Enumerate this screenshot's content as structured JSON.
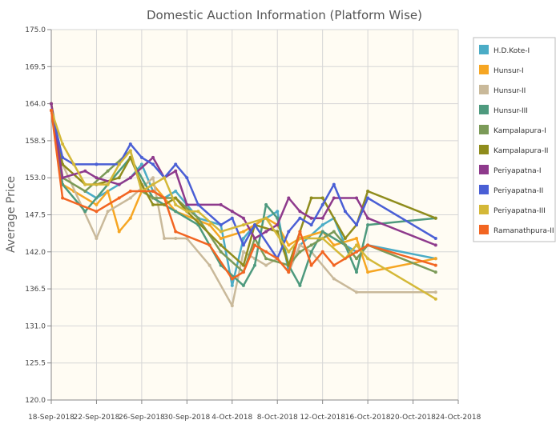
{
  "chart_data": {
    "type": "line",
    "title": "Domestic Auction Information (Platform Wise)",
    "xlabel": "",
    "ylabel": "Average Price",
    "ylim": [
      120.0,
      175.0
    ],
    "yticks": [
      "120.0",
      "125.5",
      "131.0",
      "136.5",
      "142.0",
      "147.5",
      "153.0",
      "158.5",
      "164.0",
      "169.5",
      "175.0"
    ],
    "xticks": [
      {
        "date": "2018-09-18",
        "label": "18-Sep-2018"
      },
      {
        "date": "2018-09-22",
        "label": "22-Sep-2018"
      },
      {
        "date": "2018-09-26",
        "label": "26-Sep-2018"
      },
      {
        "date": "2018-09-30",
        "label": "30-Sep-2018"
      },
      {
        "date": "2018-10-04",
        "label": "4-Oct-2018"
      },
      {
        "date": "2018-10-08",
        "label": "8-Oct-2018"
      },
      {
        "date": "2018-10-12",
        "label": "12-Oct-2018"
      },
      {
        "date": "2018-10-16",
        "label": "16-Oct-2018"
      },
      {
        "date": "2018-10-20",
        "label": "20-Oct-2018"
      },
      {
        "date": "2018-10-24",
        "label": "24-Oct-2018"
      }
    ],
    "xlim": [
      "2018-09-18",
      "2018-10-24"
    ],
    "grid": true,
    "legend_position": "right",
    "background": "#fffcf3",
    "series": [
      {
        "name": "H.D.Kote-I",
        "color": "#4bacc6",
        "points": [
          [
            "2018-09-21",
            151
          ],
          [
            "2018-09-22",
            150
          ],
          [
            "2018-09-24",
            152
          ],
          [
            "2018-09-25",
            153
          ],
          [
            "2018-09-26",
            155
          ],
          [
            "2018-09-27",
            151
          ],
          [
            "2018-09-28",
            150
          ],
          [
            "2018-09-29",
            151
          ],
          [
            "2018-09-30",
            149
          ],
          [
            "2018-10-01",
            147
          ],
          [
            "2018-10-03",
            146
          ],
          [
            "2018-10-04",
            137
          ],
          [
            "2018-10-05",
            144
          ],
          [
            "2018-10-06",
            146
          ],
          [
            "2018-10-08",
            148
          ],
          [
            "2018-10-09",
            139
          ],
          [
            "2018-10-10",
            143
          ],
          [
            "2018-10-12",
            146
          ],
          [
            "2018-10-13",
            147
          ],
          [
            "2018-10-14",
            143
          ],
          [
            "2018-10-15",
            142
          ],
          [
            "2018-10-16",
            143
          ],
          [
            "2018-10-22",
            141
          ]
        ]
      },
      {
        "name": "Hunsur-I",
        "color": "#f6a623",
        "points": [
          [
            "2018-09-18",
            163
          ],
          [
            "2018-09-19",
            152
          ],
          [
            "2018-09-20",
            151
          ],
          [
            "2018-09-22",
            149
          ],
          [
            "2018-09-23",
            151
          ],
          [
            "2018-09-24",
            145
          ],
          [
            "2018-09-25",
            147
          ],
          [
            "2018-09-26",
            151
          ],
          [
            "2018-09-27",
            152
          ],
          [
            "2018-09-28",
            150
          ],
          [
            "2018-09-29",
            148
          ],
          [
            "2018-10-02",
            146
          ],
          [
            "2018-10-03",
            144
          ],
          [
            "2018-10-05",
            145
          ],
          [
            "2018-10-07",
            147
          ],
          [
            "2018-10-08",
            146
          ],
          [
            "2018-10-09",
            143
          ],
          [
            "2018-10-10",
            144
          ],
          [
            "2018-10-12",
            145
          ],
          [
            "2018-10-13",
            143
          ],
          [
            "2018-10-15",
            144
          ],
          [
            "2018-10-16",
            139
          ],
          [
            "2018-10-22",
            141
          ]
        ]
      },
      {
        "name": "Hunsur-II",
        "color": "#c9b99a",
        "points": [
          [
            "2018-09-18",
            163
          ],
          [
            "2018-09-19",
            155
          ],
          [
            "2018-09-22",
            144
          ],
          [
            "2018-09-23",
            148
          ],
          [
            "2018-09-25",
            150
          ],
          [
            "2018-09-27",
            153
          ],
          [
            "2018-09-28",
            144
          ],
          [
            "2018-09-29",
            144
          ],
          [
            "2018-09-30",
            144
          ],
          [
            "2018-10-02",
            140
          ],
          [
            "2018-10-04",
            134
          ],
          [
            "2018-10-05",
            142
          ],
          [
            "2018-10-06",
            141
          ],
          [
            "2018-10-07",
            140
          ],
          [
            "2018-10-08",
            141
          ],
          [
            "2018-10-09",
            139
          ],
          [
            "2018-10-10",
            143
          ],
          [
            "2018-10-11",
            142
          ],
          [
            "2018-10-13",
            138
          ],
          [
            "2018-10-15",
            136
          ],
          [
            "2018-10-22",
            136
          ]
        ]
      },
      {
        "name": "Hunsur-III",
        "color": "#4e9a7e",
        "points": [
          [
            "2018-09-18",
            163
          ],
          [
            "2018-09-19",
            152
          ],
          [
            "2018-09-21",
            148
          ],
          [
            "2018-09-23",
            152
          ],
          [
            "2018-09-25",
            156
          ],
          [
            "2018-09-27",
            150
          ],
          [
            "2018-09-29",
            148
          ],
          [
            "2018-10-01",
            146
          ],
          [
            "2018-10-03",
            140
          ],
          [
            "2018-10-05",
            137
          ],
          [
            "2018-10-06",
            140
          ],
          [
            "2018-10-07",
            149
          ],
          [
            "2018-10-08",
            147
          ],
          [
            "2018-10-09",
            140
          ],
          [
            "2018-10-10",
            137
          ],
          [
            "2018-10-11",
            142
          ],
          [
            "2018-10-12",
            145
          ],
          [
            "2018-10-14",
            143
          ],
          [
            "2018-10-15",
            139
          ],
          [
            "2018-10-16",
            146
          ],
          [
            "2018-10-22",
            147
          ]
        ]
      },
      {
        "name": "Kampalapura-I",
        "color": "#7b9a58",
        "points": [
          [
            "2018-09-18",
            164
          ],
          [
            "2018-09-19",
            153
          ],
          [
            "2018-09-21",
            151
          ],
          [
            "2018-09-23",
            154
          ],
          [
            "2018-09-25",
            157
          ],
          [
            "2018-09-26",
            151
          ],
          [
            "2018-09-27",
            150
          ],
          [
            "2018-09-29",
            150
          ],
          [
            "2018-10-01",
            147
          ],
          [
            "2018-10-03",
            142
          ],
          [
            "2018-10-05",
            139
          ],
          [
            "2018-10-06",
            144
          ],
          [
            "2018-10-07",
            141
          ],
          [
            "2018-10-09",
            140
          ],
          [
            "2018-10-10",
            142
          ],
          [
            "2018-10-11",
            143
          ],
          [
            "2018-10-13",
            145
          ],
          [
            "2018-10-15",
            141
          ],
          [
            "2018-10-16",
            143
          ],
          [
            "2018-10-22",
            139
          ]
        ]
      },
      {
        "name": "Kampalapura-II",
        "color": "#8f8c1c",
        "points": [
          [
            "2018-09-18",
            164
          ],
          [
            "2018-09-19",
            155
          ],
          [
            "2018-09-21",
            152
          ],
          [
            "2018-09-22",
            152
          ],
          [
            "2018-09-24",
            153
          ],
          [
            "2018-09-25",
            156
          ],
          [
            "2018-09-26",
            152
          ],
          [
            "2018-09-27",
            149
          ],
          [
            "2018-09-28",
            149
          ],
          [
            "2018-09-29",
            150
          ],
          [
            "2018-09-30",
            148
          ],
          [
            "2018-10-03",
            143
          ],
          [
            "2018-10-05",
            140
          ],
          [
            "2018-10-06",
            146
          ],
          [
            "2018-10-08",
            145
          ],
          [
            "2018-10-09",
            140
          ],
          [
            "2018-10-10",
            145
          ],
          [
            "2018-10-11",
            150
          ],
          [
            "2018-10-12",
            150
          ],
          [
            "2018-10-14",
            144
          ],
          [
            "2018-10-15",
            146
          ],
          [
            "2018-10-16",
            151
          ],
          [
            "2018-10-22",
            147
          ]
        ]
      },
      {
        "name": "Periyapatna-I",
        "color": "#8e3a8c",
        "points": [
          [
            "2018-09-18",
            164
          ],
          [
            "2018-09-19",
            153
          ],
          [
            "2018-09-21",
            154
          ],
          [
            "2018-09-22",
            153
          ],
          [
            "2018-09-24",
            152
          ],
          [
            "2018-09-25",
            153
          ],
          [
            "2018-09-27",
            156
          ],
          [
            "2018-09-28",
            153
          ],
          [
            "2018-09-29",
            154
          ],
          [
            "2018-09-30",
            149
          ],
          [
            "2018-10-03",
            149
          ],
          [
            "2018-10-04",
            148
          ],
          [
            "2018-10-05",
            147
          ],
          [
            "2018-10-06",
            144
          ],
          [
            "2018-10-07",
            145
          ],
          [
            "2018-10-08",
            146
          ],
          [
            "2018-10-09",
            150
          ],
          [
            "2018-10-10",
            148
          ],
          [
            "2018-10-11",
            147
          ],
          [
            "2018-10-12",
            147
          ],
          [
            "2018-10-13",
            150
          ],
          [
            "2018-10-15",
            150
          ],
          [
            "2018-10-16",
            147
          ],
          [
            "2018-10-22",
            143
          ]
        ]
      },
      {
        "name": "Periyapatna-II",
        "color": "#4a5fd5",
        "points": [
          [
            "2018-09-18",
            163
          ],
          [
            "2018-09-19",
            156
          ],
          [
            "2018-09-20",
            155
          ],
          [
            "2018-09-22",
            155
          ],
          [
            "2018-09-24",
            155
          ],
          [
            "2018-09-25",
            158
          ],
          [
            "2018-09-26",
            156
          ],
          [
            "2018-09-27",
            155
          ],
          [
            "2018-09-28",
            153
          ],
          [
            "2018-09-29",
            155
          ],
          [
            "2018-09-30",
            153
          ],
          [
            "2018-10-01",
            149
          ],
          [
            "2018-10-03",
            146
          ],
          [
            "2018-10-04",
            147
          ],
          [
            "2018-10-05",
            143
          ],
          [
            "2018-10-06",
            146
          ],
          [
            "2018-10-08",
            141
          ],
          [
            "2018-10-09",
            145
          ],
          [
            "2018-10-10",
            147
          ],
          [
            "2018-10-11",
            146
          ],
          [
            "2018-10-12",
            149
          ],
          [
            "2018-10-13",
            152
          ],
          [
            "2018-10-14",
            148
          ],
          [
            "2018-10-15",
            146
          ],
          [
            "2018-10-16",
            150
          ],
          [
            "2018-10-22",
            144
          ]
        ]
      },
      {
        "name": "Periyapatna-III",
        "color": "#d4b838",
        "points": [
          [
            "2018-09-18",
            163
          ],
          [
            "2018-09-19",
            158
          ],
          [
            "2018-09-20",
            155
          ],
          [
            "2018-09-21",
            152
          ],
          [
            "2018-09-23",
            152
          ],
          [
            "2018-09-24",
            155
          ],
          [
            "2018-09-25",
            157
          ],
          [
            "2018-09-26",
            151
          ],
          [
            "2018-09-27",
            152
          ],
          [
            "2018-09-28",
            153
          ],
          [
            "2018-09-29",
            149
          ],
          [
            "2018-09-30",
            148
          ],
          [
            "2018-10-01",
            148
          ],
          [
            "2018-10-03",
            145
          ],
          [
            "2018-10-05",
            146
          ],
          [
            "2018-10-07",
            147
          ],
          [
            "2018-10-09",
            142
          ],
          [
            "2018-10-10",
            144
          ],
          [
            "2018-10-12",
            144
          ],
          [
            "2018-10-14",
            141
          ],
          [
            "2018-10-15",
            143
          ],
          [
            "2018-10-16",
            141
          ],
          [
            "2018-10-22",
            135
          ]
        ]
      },
      {
        "name": "Ramanathpura-II",
        "color": "#f26522",
        "points": [
          [
            "2018-09-18",
            163
          ],
          [
            "2018-09-19",
            150
          ],
          [
            "2018-09-22",
            148
          ],
          [
            "2018-09-24",
            150
          ],
          [
            "2018-09-25",
            151
          ],
          [
            "2018-09-27",
            151
          ],
          [
            "2018-09-28",
            150
          ],
          [
            "2018-09-29",
            145
          ],
          [
            "2018-10-02",
            143
          ],
          [
            "2018-10-04",
            138
          ],
          [
            "2018-10-05",
            139
          ],
          [
            "2018-10-06",
            143
          ],
          [
            "2018-10-07",
            142
          ],
          [
            "2018-10-08",
            141
          ],
          [
            "2018-10-09",
            139
          ],
          [
            "2018-10-10",
            145
          ],
          [
            "2018-10-11",
            140
          ],
          [
            "2018-10-12",
            142
          ],
          [
            "2018-10-13",
            140
          ],
          [
            "2018-10-15",
            142
          ],
          [
            "2018-10-16",
            143
          ],
          [
            "2018-10-22",
            140
          ]
        ]
      }
    ]
  }
}
